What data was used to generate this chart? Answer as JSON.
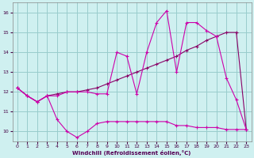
{
  "xlabel": "Windchill (Refroidissement éolien,°C)",
  "background_color": "#cff0f0",
  "grid_color": "#99cccc",
  "line_color1": "#cc00aa",
  "line_color2": "#880066",
  "xlim": [
    -0.5,
    23.5
  ],
  "ylim": [
    9.5,
    16.5
  ],
  "yticks": [
    10,
    11,
    12,
    13,
    14,
    15,
    16
  ],
  "xticks": [
    0,
    1,
    2,
    3,
    4,
    5,
    6,
    7,
    8,
    9,
    10,
    11,
    12,
    13,
    14,
    15,
    16,
    17,
    18,
    19,
    20,
    21,
    22,
    23
  ],
  "line1_x": [
    0,
    1,
    2,
    3,
    4,
    5,
    6,
    7,
    8,
    9,
    10,
    11,
    12,
    13,
    14,
    15,
    16,
    17,
    18,
    19,
    20,
    21,
    22,
    23
  ],
  "line1_y": [
    12.2,
    11.8,
    11.5,
    11.8,
    11.8,
    12.0,
    12.0,
    12.0,
    11.9,
    11.9,
    14.0,
    13.8,
    11.9,
    14.0,
    15.5,
    16.1,
    13.0,
    15.5,
    15.5,
    15.1,
    14.8,
    12.7,
    11.6,
    10.1
  ],
  "line2_x": [
    0,
    1,
    2,
    3,
    4,
    5,
    6,
    7,
    8,
    9,
    10,
    11,
    12,
    13,
    14,
    15,
    16,
    17,
    18,
    19,
    20,
    21,
    22,
    23
  ],
  "line2_y": [
    12.2,
    11.8,
    11.5,
    11.8,
    11.9,
    12.0,
    12.0,
    12.1,
    12.2,
    12.4,
    12.6,
    12.8,
    13.0,
    13.2,
    13.4,
    13.6,
    13.8,
    14.1,
    14.3,
    14.6,
    14.8,
    15.0,
    15.0,
    10.1
  ],
  "line3_x": [
    0,
    1,
    2,
    3,
    4,
    5,
    6,
    7,
    8,
    9,
    10,
    11,
    12,
    13,
    14,
    15,
    16,
    17,
    18,
    19,
    20,
    21,
    22,
    23
  ],
  "line3_y": [
    12.2,
    11.8,
    11.5,
    11.8,
    10.6,
    10.0,
    9.7,
    10.0,
    10.4,
    10.5,
    10.5,
    10.5,
    10.5,
    10.5,
    10.5,
    10.5,
    10.3,
    10.3,
    10.2,
    10.2,
    10.2,
    10.1,
    10.1,
    10.1
  ]
}
